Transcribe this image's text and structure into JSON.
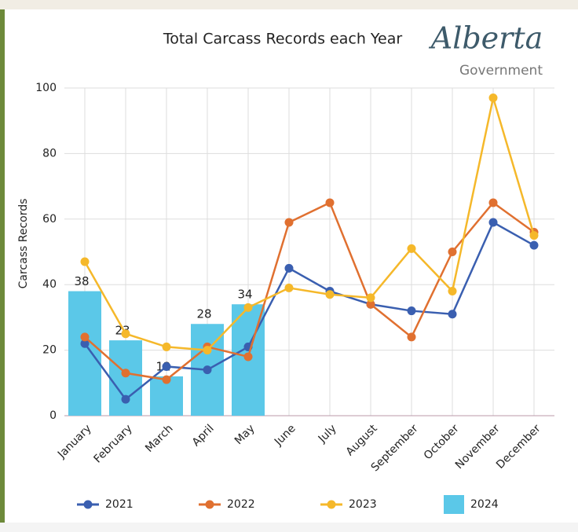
{
  "logo": {
    "name": "Alberta",
    "subtitle": "Government"
  },
  "chart_data": {
    "type": "combo",
    "title": "Total Carcass Records each Year",
    "y_label": "Carcass Records",
    "categories": [
      "January",
      "February",
      "March",
      "April",
      "May",
      "June",
      "July",
      "August",
      "September",
      "October",
      "November",
      "December"
    ],
    "series": [
      {
        "name": "2021",
        "type": "line",
        "color": "#3a5fb0",
        "values": [
          22,
          5,
          15,
          14,
          21,
          45,
          38,
          34,
          32,
          31,
          59,
          52
        ]
      },
      {
        "name": "2022",
        "type": "line",
        "color": "#e07030",
        "values": [
          24,
          13,
          11,
          21,
          18,
          59,
          65,
          34,
          24,
          50,
          65,
          56
        ]
      },
      {
        "name": "2023",
        "type": "line",
        "color": "#f5b82a",
        "values": [
          47,
          25,
          21,
          20,
          33,
          39,
          37,
          36,
          51,
          38,
          97,
          55
        ]
      },
      {
        "name": "2024",
        "type": "bar",
        "color": "#5bc8e8",
        "values": [
          38,
          23,
          12,
          28,
          34,
          null,
          null,
          null,
          null,
          null,
          null,
          null
        ]
      }
    ],
    "ylim": [
      0,
      100
    ],
    "yticks": [
      0,
      20,
      40,
      60,
      80,
      100
    ],
    "grid": true
  }
}
